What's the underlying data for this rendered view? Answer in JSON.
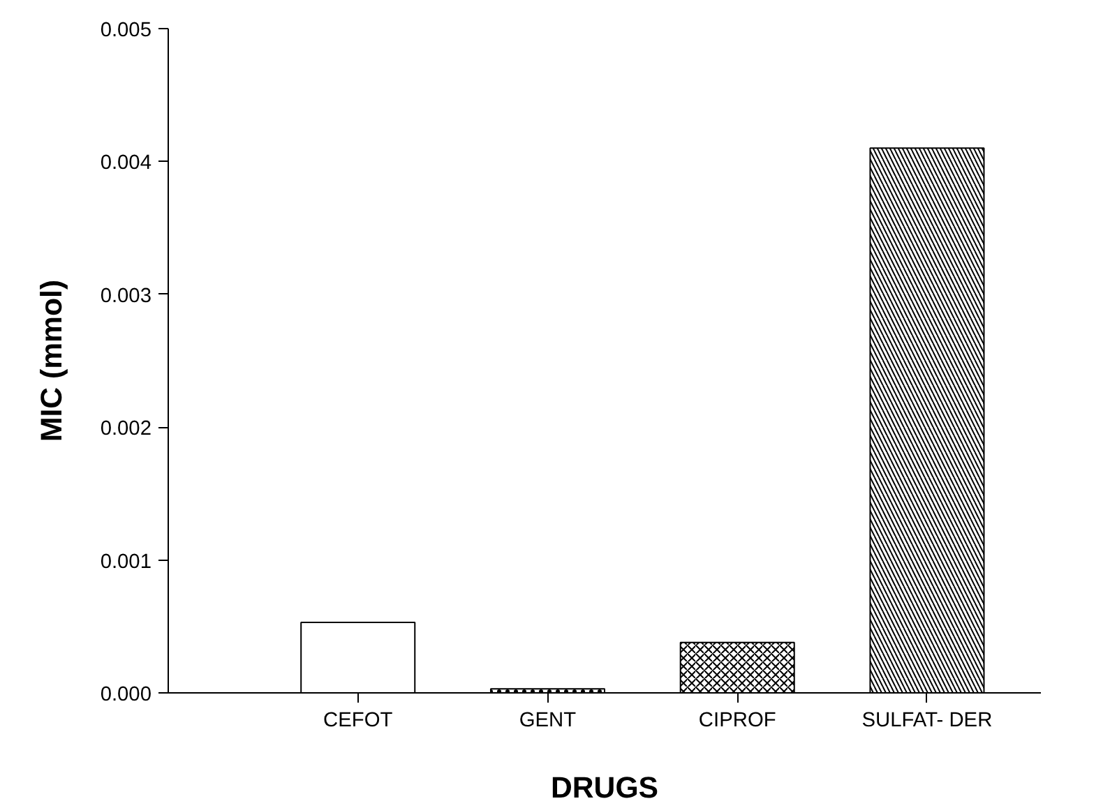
{
  "chart_data": {
    "type": "bar",
    "xlabel": "DRUGS",
    "ylabel": "MIC (mmol)",
    "categories": [
      "CEFOT",
      "GENT",
      "CIPROF",
      "SULFAT- DER"
    ],
    "values": [
      0.00053,
      3e-05,
      0.00038,
      0.0041
    ],
    "colors": [
      "#ffffff",
      "#ffffff",
      "#ffffff",
      "#ffffff"
    ],
    "ylim": [
      0,
      0.005
    ],
    "yticks": [
      {
        "value": 0,
        "label": "0.000"
      },
      {
        "value": 0.001,
        "label": "0.001"
      },
      {
        "value": 0.002,
        "label": "0.002"
      },
      {
        "value": 0.003,
        "label": "0.003"
      },
      {
        "value": 0.004,
        "label": "0.004"
      },
      {
        "value": 0.005,
        "label": "0.005"
      }
    ],
    "grid": false
  }
}
